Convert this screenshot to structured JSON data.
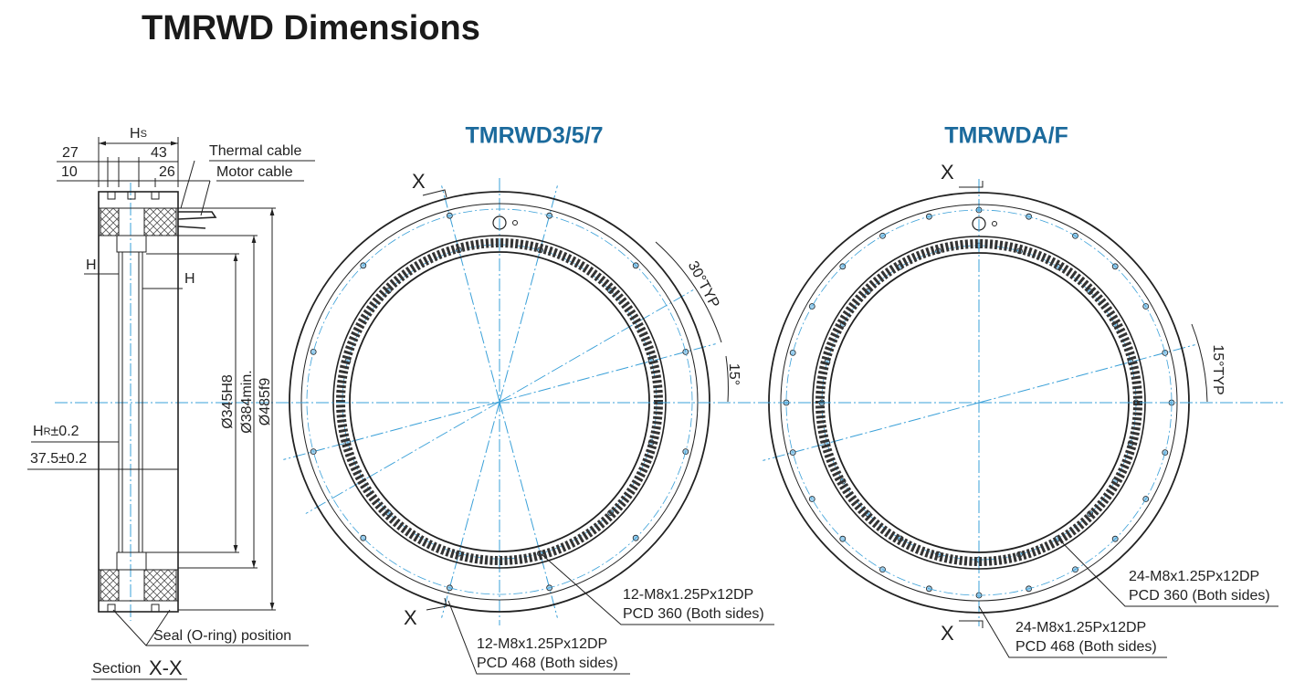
{
  "title": "TMRWD Dimensions",
  "section": {
    "hs": {
      "main": "H",
      "sub": "S"
    },
    "dims": [
      27,
      43,
      10,
      26
    ],
    "cables": [
      "Thermal cable",
      "Motor cable"
    ],
    "h_left": "H",
    "h_right": "H",
    "hr": {
      "main": "H",
      "sub": "R",
      "tol": "±0.2"
    },
    "offset": "37.5±0.2",
    "diameters": [
      "Ø345H8",
      "Ø384min.",
      "Ø485f9"
    ],
    "seal": "Seal (O-ring) position",
    "caption": "Section",
    "caption_id": "X-X"
  },
  "views": [
    {
      "title": "TMRWD3/5/7",
      "cut_marks": [
        "X",
        "X"
      ],
      "angles": [
        "30°TYP",
        "15°"
      ],
      "callouts": [
        {
          "thread": "12-M8x1.25Px12DP",
          "pcd": "PCD 360 (Both sides)"
        },
        {
          "thread": "12-M8x1.25Px12DP",
          "pcd": "PCD 468 (Both sides)"
        }
      ]
    },
    {
      "title": "TMRWDA/F",
      "cut_marks": [
        "X",
        "X"
      ],
      "angles": [
        "15°TYP"
      ],
      "callouts": [
        {
          "thread": "24-M8x1.25Px12DP",
          "pcd": "PCD 360 (Both sides)"
        },
        {
          "thread": "24-M8x1.25Px12DP",
          "pcd": "PCD 468 (Both sides)"
        }
      ]
    }
  ]
}
